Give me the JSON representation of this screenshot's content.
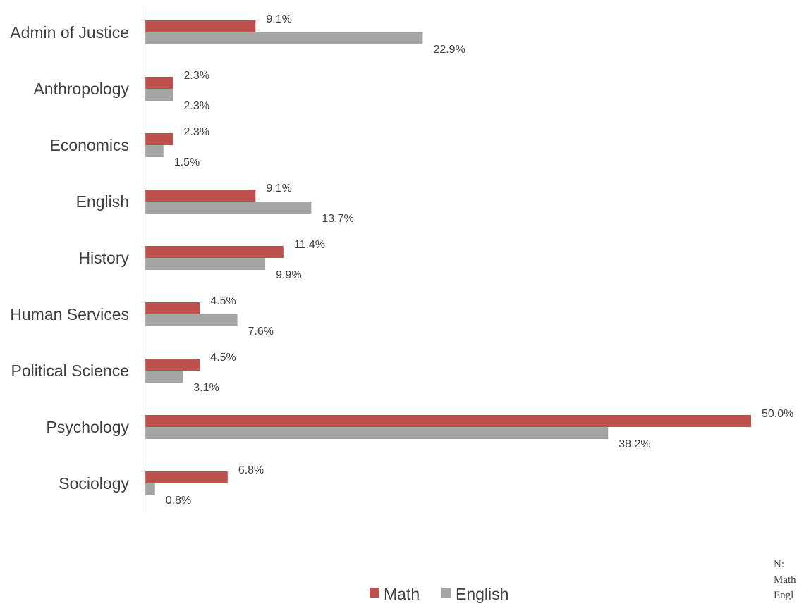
{
  "chart_data": {
    "type": "bar",
    "orientation": "horizontal",
    "categories": [
      "Admin of Justice",
      "Anthropology",
      "Economics",
      "English",
      "History",
      "Human Services",
      "Political Science",
      "Psychology",
      "Sociology"
    ],
    "series": [
      {
        "name": "Math",
        "color": "#c0504d",
        "values": [
          9.1,
          2.3,
          2.3,
          9.1,
          11.4,
          4.5,
          4.5,
          50.0,
          6.8
        ],
        "labels": [
          "9.1%",
          "2.3%",
          "2.3%",
          "9.1%",
          "11.4%",
          "4.5%",
          "4.5%",
          "50.0%",
          "6.8%"
        ]
      },
      {
        "name": "English",
        "color": "#a5a5a5",
        "values": [
          22.9,
          2.3,
          1.5,
          13.7,
          9.9,
          7.6,
          3.1,
          38.2,
          0.8
        ],
        "labels": [
          "22.9%",
          "2.3%",
          "1.5%",
          "13.7%",
          "9.9%",
          "7.6%",
          "3.1%",
          "38.2%",
          "0.8%"
        ]
      }
    ],
    "xlim": [
      0,
      50
    ],
    "grid": false,
    "legend": "bottom"
  },
  "note": {
    "title": "N:",
    "lines": [
      "Math",
      "Engl"
    ]
  }
}
